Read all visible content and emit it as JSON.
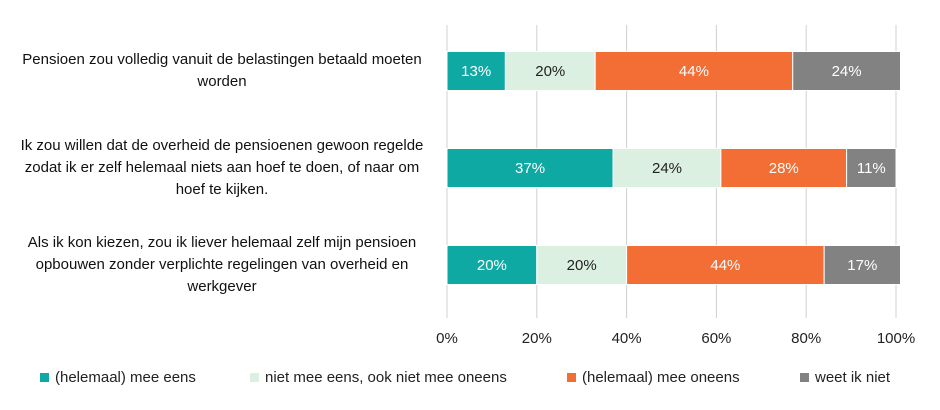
{
  "chart_data": {
    "type": "stacked-bar-horizontal",
    "categories": [
      "Pensioen zou volledig vanuit de belastingen betaald moeten worden",
      "Ik zou willen dat de overheid de pensioenen gewoon regelde zodat ik er zelf helemaal niets aan hoef te doen, of naar om hoef te kijken.",
      "Als ik kon kiezen, zou ik liever helemaal zelf mijn pensioen opbouwen zonder verplichte regelingen van overheid en werkgever"
    ],
    "series": [
      {
        "name": "(helemaal) mee eens",
        "color": "#0fa9a4",
        "values": [
          13,
          37,
          20
        ],
        "value_labels": [
          "13%",
          "37%",
          "20%"
        ]
      },
      {
        "name": "niet mee eens, ook niet mee oneens",
        "color": "#dcf0e2",
        "values": [
          20,
          24,
          20
        ],
        "value_labels": [
          "20%",
          "24%",
          "20%"
        ]
      },
      {
        "name": "(helemaal) mee oneens",
        "color": "#f26e35",
        "values": [
          44,
          28,
          44
        ],
        "value_labels": [
          "44%",
          "28%",
          "44%"
        ]
      },
      {
        "name": "weet ik niet",
        "color": "#828282",
        "values": [
          24,
          11,
          17
        ],
        "value_labels": [
          "24%",
          "11%",
          "17%"
        ]
      }
    ],
    "xlim": [
      0,
      100
    ],
    "xticks": [
      {
        "value": 0,
        "label": "0%"
      },
      {
        "value": 20,
        "label": "20%"
      },
      {
        "value": 40,
        "label": "40%"
      },
      {
        "value": 60,
        "label": "60%"
      },
      {
        "value": 80,
        "label": "80%"
      },
      {
        "value": 100,
        "label": "100%"
      }
    ],
    "grid": true,
    "legend": "bottom"
  }
}
